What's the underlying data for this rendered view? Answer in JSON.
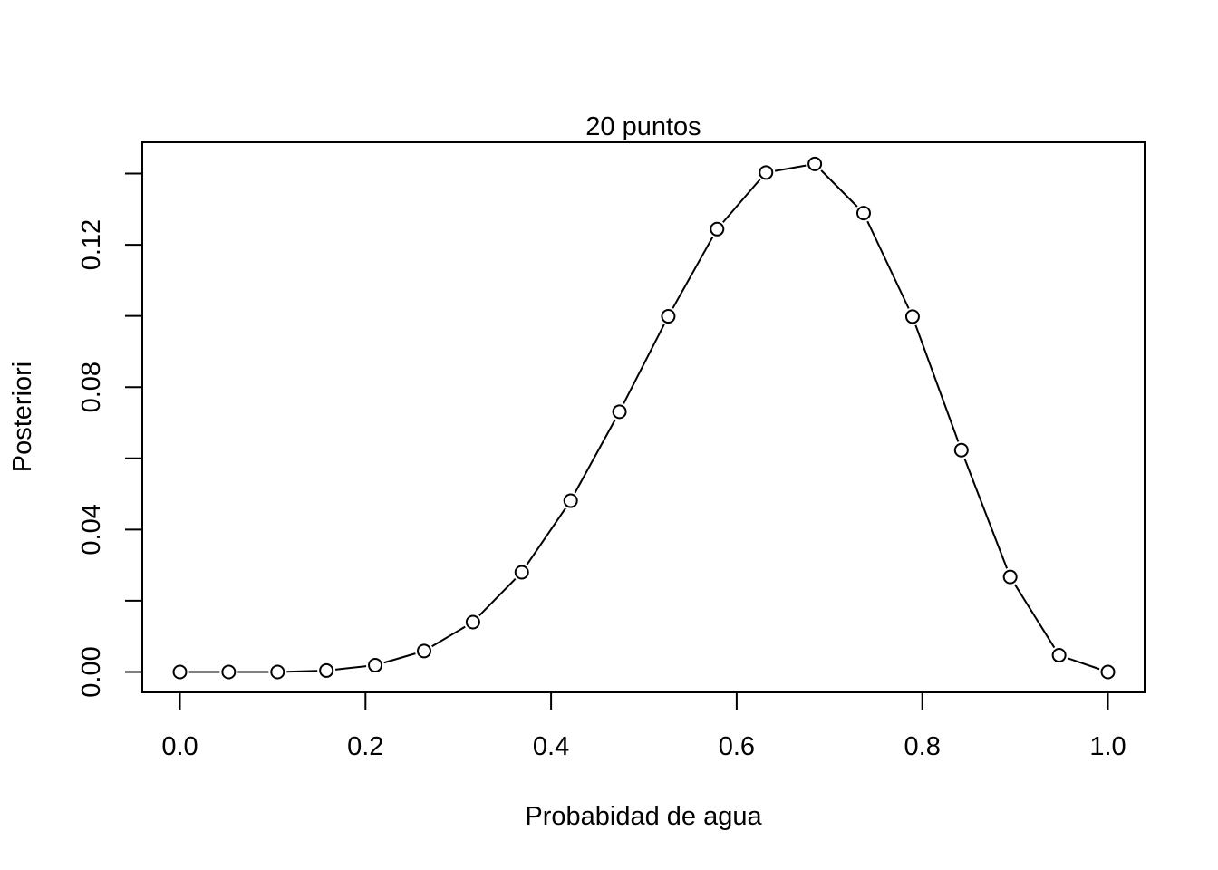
{
  "chart_data": {
    "type": "line",
    "title": "20 puntos",
    "xlabel": "Probabidad de agua",
    "ylabel": "Posteriori",
    "xlim": [
      0,
      1
    ],
    "ylim": [
      0,
      0.14
    ],
    "x_ticks": [
      0.0,
      0.2,
      0.4,
      0.6,
      0.8,
      1.0
    ],
    "x_tick_labels": [
      "0.0",
      "0.2",
      "0.4",
      "0.6",
      "0.8",
      "1.0"
    ],
    "y_ticks": [
      0.0,
      0.02,
      0.04,
      0.06,
      0.08,
      0.1,
      0.12,
      0.14
    ],
    "y_tick_labels": [
      "0.00",
      "",
      "0.04",
      "",
      "0.08",
      "",
      "0.12",
      ""
    ],
    "marker": "open-circle",
    "line_style": "solid",
    "grid": false,
    "series": [
      {
        "x": [
          0.0,
          0.0526,
          0.1053,
          0.1579,
          0.2105,
          0.2632,
          0.3158,
          0.3684,
          0.4211,
          0.4737,
          0.5263,
          0.5789,
          0.6316,
          0.6842,
          0.7368,
          0.7895,
          0.8421,
          0.8947,
          0.9474,
          1.0
        ],
        "values": [
          0.0,
          0.0,
          0.0,
          0.0004,
          0.0019,
          0.0059,
          0.014,
          0.028,
          0.0481,
          0.0731,
          0.0999,
          0.1244,
          0.1403,
          0.1427,
          0.1289,
          0.0998,
          0.0623,
          0.0267,
          0.0047,
          0.0
        ]
      }
    ]
  }
}
